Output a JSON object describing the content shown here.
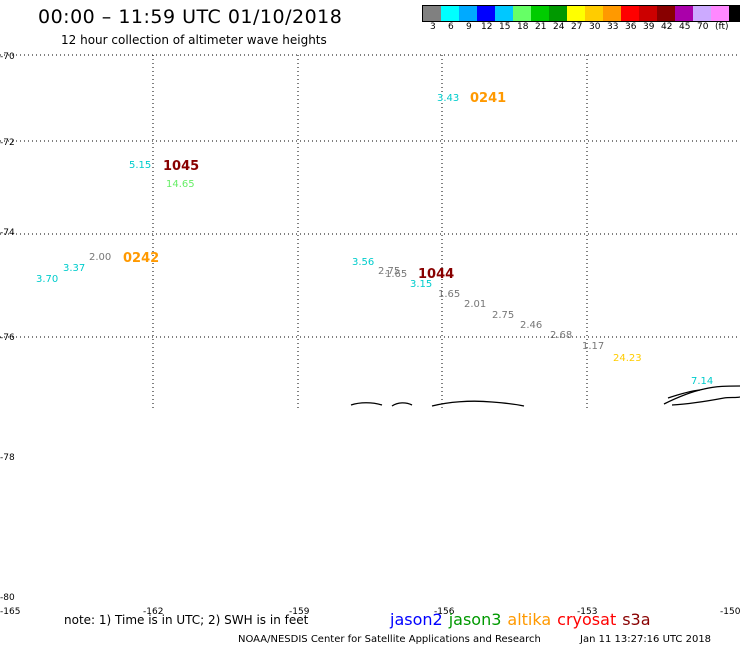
{
  "header": {
    "title": "00:00 – 11:59 UTC 01/10/2018",
    "subtitle": "12 hour collection of altimeter wave heights"
  },
  "legend": {
    "colors": [
      "#808080",
      "#00ffff",
      "#00aaff",
      "#0000ff",
      "#00c8ff",
      "#66ff66",
      "#00cc00",
      "#009900",
      "#ffff00",
      "#ffcc00",
      "#ff9900",
      "#ff0000",
      "#cc0000",
      "#880000",
      "#aa00aa",
      "#ccaaff",
      "#ff88ff",
      "#000000"
    ],
    "labels": [
      "3",
      "6",
      "9",
      "12",
      "15",
      "18",
      "21",
      "24",
      "27",
      "30",
      "33",
      "36",
      "39",
      "42",
      "45",
      "70",
      "(ft)"
    ]
  },
  "axes": {
    "lat_labels": [
      "-70",
      "-72",
      "-74",
      "-76",
      "-78",
      "-80"
    ],
    "lon_labels": [
      "-165",
      "-162",
      "-159",
      "-156",
      "-153",
      "-150"
    ]
  },
  "passes": [
    {
      "id": "0241",
      "color": "#ff9900"
    },
    {
      "id": "1045",
      "color": "#880000"
    },
    {
      "id": "0242",
      "color": "#ff9900"
    },
    {
      "id": "1044",
      "color": "#880000"
    }
  ],
  "wave_values": [
    {
      "text": "3.43",
      "color": "#00cccc"
    },
    {
      "text": "5.15",
      "color": "#00cccc"
    },
    {
      "text": "14.65",
      "color": "#66ee66"
    },
    {
      "text": "2.00",
      "color": "#777777"
    },
    {
      "text": "3.37",
      "color": "#00cccc"
    },
    {
      "text": "3.70",
      "color": "#00cccc"
    },
    {
      "text": "3.56",
      "color": "#00cccc"
    },
    {
      "text": "2.75",
      "color": "#777777"
    },
    {
      "text": "1.65",
      "color": "#777777"
    },
    {
      "text": "3.15",
      "color": "#00cccc"
    },
    {
      "text": "1.65",
      "color": "#777777"
    },
    {
      "text": "2.01",
      "color": "#777777"
    },
    {
      "text": "2.75",
      "color": "#777777"
    },
    {
      "text": "2.46",
      "color": "#777777"
    },
    {
      "text": "2.68",
      "color": "#777777"
    },
    {
      "text": "1.17",
      "color": "#777777"
    },
    {
      "text": "24.23",
      "color": "#ffcc00"
    },
    {
      "text": "7.14",
      "color": "#00cccc"
    }
  ],
  "footer": {
    "note": "note: 1) Time is in UTC; 2) SWH is in feet",
    "satellites": [
      {
        "name": "jason2",
        "color": "#0000ff"
      },
      {
        "name": "jason3",
        "color": "#009900"
      },
      {
        "name": "altika",
        "color": "#ff9900"
      },
      {
        "name": "cryosat",
        "color": "#ff0000"
      },
      {
        "name": "s3a",
        "color": "#880000"
      }
    ],
    "credit": "NOAA/NESDIS Center for Satellite Applications and Research",
    "timestamp": "Jan 11 13:27:16 UTC 2018"
  }
}
